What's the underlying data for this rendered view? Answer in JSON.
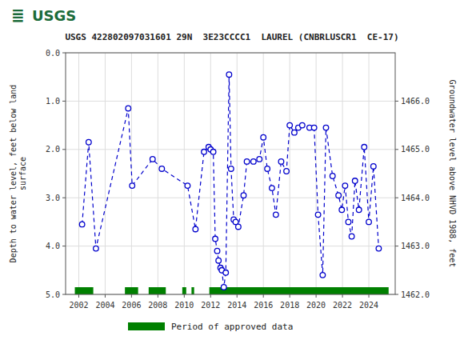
{
  "chart_data": {
    "type": "line",
    "title": "USGS 422802097031601 29N  3E23CCCC1  LAUREL (CNBRLUSCR1  CE-17)",
    "annotations": [
      "≣",
      "USGS"
    ],
    "ylabel": "Depth to water level, feet below land\nsurface",
    "y2label": "Groundwater level above NHVD 1988, feet",
    "xlim": [
      2001.0,
      2026.0
    ],
    "xticks": [
      2002,
      2004,
      2006,
      2008,
      2010,
      2012,
      2014,
      2016,
      2018,
      2020,
      2022,
      2024
    ],
    "ylim": [
      5.0,
      0.0
    ],
    "yticks": [
      {
        "value": 0.0,
        "label": "0.0"
      },
      {
        "value": 1.0,
        "label": "1.0"
      },
      {
        "value": 2.0,
        "label": "2.0"
      },
      {
        "value": 3.0,
        "label": "3.0"
      },
      {
        "value": 4.0,
        "label": "4.0"
      },
      {
        "value": 5.0,
        "label": "5.0"
      }
    ],
    "y2lim": [
      1462.0,
      1467.0
    ],
    "y2ticks": [
      {
        "value": 1462.0,
        "label": "1462.0"
      },
      {
        "value": 1463.0,
        "label": "1463.0"
      },
      {
        "value": 1464.0,
        "label": "1464.0"
      },
      {
        "value": 1465.0,
        "label": "1465.0"
      },
      {
        "value": 1466.0,
        "label": "1466.0"
      }
    ],
    "grid": true,
    "legend": "bottom",
    "x": [
      2002.25,
      2002.75,
      2003.3,
      2005.75,
      2006.05,
      2007.6,
      2008.3,
      2010.25,
      2010.85,
      2011.5,
      2011.85,
      2012.0,
      2012.2,
      2012.35,
      2012.5,
      2012.6,
      2012.75,
      2012.85,
      2013.0,
      2013.15,
      2013.4,
      2013.55,
      2013.75,
      2013.9,
      2014.1,
      2014.5,
      2014.75,
      2015.25,
      2015.7,
      2016.0,
      2016.3,
      2016.65,
      2016.95,
      2017.35,
      2017.75,
      2018.0,
      2018.35,
      2018.65,
      2018.95,
      2019.5,
      2019.85,
      2020.15,
      2020.5,
      2020.75,
      2021.25,
      2021.7,
      2021.95,
      2022.2,
      2022.45,
      2022.7,
      2022.95,
      2023.25,
      2023.65,
      2024.0,
      2024.35,
      2024.75
    ],
    "series": [
      {
        "color": "#0000cc",
        "line_style": "dashed",
        "marker": "circle",
        "values": [
          3.55,
          1.85,
          4.05,
          1.15,
          2.75,
          2.2,
          2.4,
          2.75,
          3.65,
          2.05,
          1.95,
          2.0,
          2.05,
          3.85,
          4.1,
          4.3,
          4.45,
          4.5,
          4.85,
          4.55,
          0.45,
          2.4,
          3.45,
          3.5,
          3.6,
          2.95,
          2.25,
          2.25,
          2.2,
          1.75,
          2.4,
          2.8,
          3.35,
          2.25,
          2.45,
          1.5,
          1.65,
          1.55,
          1.5,
          1.55,
          1.55,
          3.35,
          4.6,
          1.55,
          2.55,
          2.95,
          3.25,
          2.75,
          3.5,
          3.8,
          2.65,
          3.25,
          1.95,
          3.5,
          2.35,
          4.05
        ]
      }
    ],
    "approved_periods": {
      "name": "Period of approved data",
      "color": "#008000",
      "start": [
        2001.7,
        2005.5,
        2007.3,
        2009.85,
        2010.55,
        2011.9
      ],
      "end": [
        2003.1,
        2006.5,
        2008.6,
        2010.15,
        2010.75,
        2025.5
      ]
    }
  }
}
